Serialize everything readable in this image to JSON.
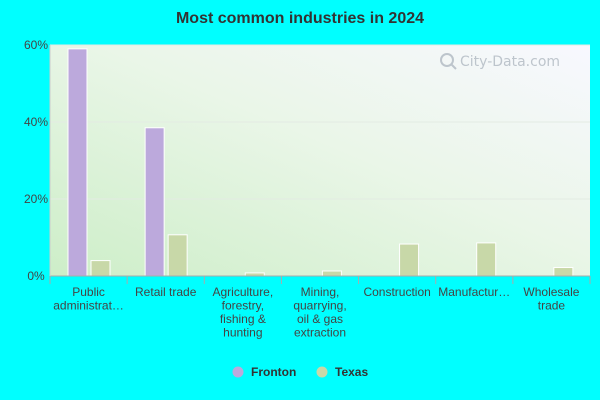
{
  "chart_data": {
    "type": "bar",
    "title": "Most common industries in 2024",
    "categories": [
      [
        "Public",
        "administrat…"
      ],
      [
        "Retail trade"
      ],
      [
        "Agriculture,",
        "forestry,",
        "fishing &",
        "hunting"
      ],
      [
        "Mining,",
        "quarrying,",
        "oil & gas",
        "extraction"
      ],
      [
        "Construction"
      ],
      [
        "Manufactur…"
      ],
      [
        "Wholesale",
        "trade"
      ]
    ],
    "series": [
      {
        "name": "Fronton",
        "color": "#bca9dc",
        "values": [
          59.0,
          38.5,
          0,
          0,
          0,
          0,
          0
        ]
      },
      {
        "name": "Texas",
        "color": "#c8d8a8",
        "values": [
          4.0,
          10.7,
          0.8,
          1.3,
          8.3,
          8.6,
          2.2
        ]
      }
    ],
    "y_ticks": [
      "0%",
      "20%",
      "40%",
      "60%"
    ],
    "y_tick_values": [
      0,
      20,
      40,
      60
    ],
    "ylim": [
      0,
      60
    ],
    "legend_position": "bottom-center",
    "watermark": "City-Data.com"
  }
}
